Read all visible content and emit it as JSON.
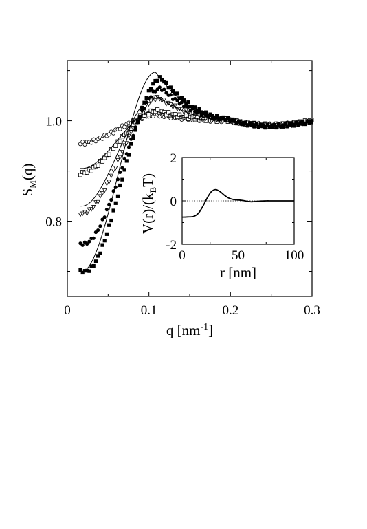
{
  "chart_data": [
    {
      "type": "scatter",
      "title": "",
      "xlabel": "q [nm",
      "xlabel_sup": "-1",
      "xlabel_end": "]",
      "ylabel": "S",
      "ylabel_sub": "M",
      "ylabel_end": "(q)",
      "xlim": [
        0,
        0.3
      ],
      "ylim": [
        0.65,
        1.12
      ],
      "xticks": [
        {
          "value": 0,
          "label": "0"
        },
        {
          "value": 0.1,
          "label": "0.1"
        },
        {
          "value": 0.2,
          "label": "0.2"
        },
        {
          "value": 0.3,
          "label": "0.3"
        }
      ],
      "yticks": [
        {
          "value": 0.8,
          "label": "0.8"
        },
        {
          "value": 1.0,
          "label": "1.0"
        }
      ],
      "grid": false,
      "legend": "none",
      "series": [
        {
          "marker": "filled-square",
          "s0": 0.7,
          "peak": 1.085,
          "peak_q": 0.115,
          "q_onset": 0.022
        },
        {
          "marker": "filled-circle",
          "s0": 0.755,
          "peak": 1.065,
          "peak_q": 0.115,
          "q_onset": 0.02
        },
        {
          "marker": "open-triangle-down",
          "s0": 0.815,
          "peak": 1.045,
          "peak_q": 0.112,
          "q_onset": 0.018
        },
        {
          "marker": "open-square",
          "s0": 0.895,
          "peak": 1.02,
          "peak_q": 0.11,
          "q_onset": 0.015
        },
        {
          "marker": "open-circle",
          "s0": 0.955,
          "peak": 1.012,
          "peak_q": 0.11,
          "q_onset": 0.015
        }
      ],
      "fits": [
        {
          "s0": 0.7,
          "peak": 1.097,
          "peak_q": 0.108
        },
        {
          "s0": 0.83,
          "peak": 1.05,
          "peak_q": 0.108
        },
        {
          "s0": 0.905,
          "peak": 1.02,
          "peak_q": 0.106
        }
      ]
    },
    {
      "type": "line",
      "title": "",
      "xlabel": "r [nm]",
      "ylabel": "V(r)/(k",
      "ylabel_sub": "B",
      "ylabel_end": "T)",
      "xlim": [
        0,
        100
      ],
      "ylim": [
        -2,
        2
      ],
      "xticks": [
        {
          "value": 0,
          "label": "0"
        },
        {
          "value": 50,
          "label": "50"
        },
        {
          "value": 100,
          "label": "100"
        }
      ],
      "yticks": [
        {
          "value": -2,
          "label": "-2"
        },
        {
          "value": 0,
          "label": "0"
        },
        {
          "value": 2,
          "label": "2"
        }
      ],
      "reference_line": 0,
      "series": [
        {
          "r": [
            0,
            5,
            10,
            14,
            18,
            22,
            26,
            30,
            34,
            38,
            42,
            46,
            50,
            54,
            58,
            62,
            66,
            70,
            75,
            80,
            90,
            100
          ],
          "V": [
            -0.75,
            -0.74,
            -0.72,
            -0.6,
            -0.3,
            0.1,
            0.42,
            0.52,
            0.42,
            0.25,
            0.12,
            0.06,
            0.04,
            0.02,
            -0.02,
            -0.04,
            -0.03,
            -0.01,
            0.0,
            0.0,
            0.0,
            0.0
          ]
        }
      ]
    }
  ]
}
